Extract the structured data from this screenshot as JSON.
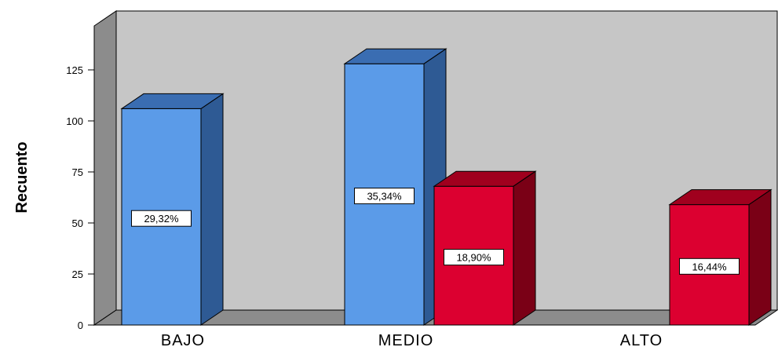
{
  "chart_data": {
    "type": "bar",
    "style": "3d-clustered",
    "categories": [
      "BAJO",
      "MEDIO",
      "ALTO"
    ],
    "ylabel": "Recuento",
    "xlabel": "",
    "ylim": [
      0,
      150
    ],
    "yticks": [
      0,
      25,
      50,
      75,
      100,
      125
    ],
    "ytick_labels": [
      "0",
      "25",
      "50",
      "75",
      "100",
      "125"
    ],
    "grid": false,
    "series": [
      {
        "color": "#5b9be8",
        "top_color": "#3a6db2",
        "side_color": "#2e5a94",
        "values": [
          106,
          128,
          null
        ],
        "data_labels": [
          "29,32%",
          "35,34%",
          ""
        ]
      },
      {
        "color": "#dc0030",
        "top_color": "#a0001e",
        "side_color": "#7a0016",
        "values": [
          null,
          68,
          59
        ],
        "data_labels": [
          "",
          "18,90%",
          "16,44%"
        ]
      }
    ]
  }
}
